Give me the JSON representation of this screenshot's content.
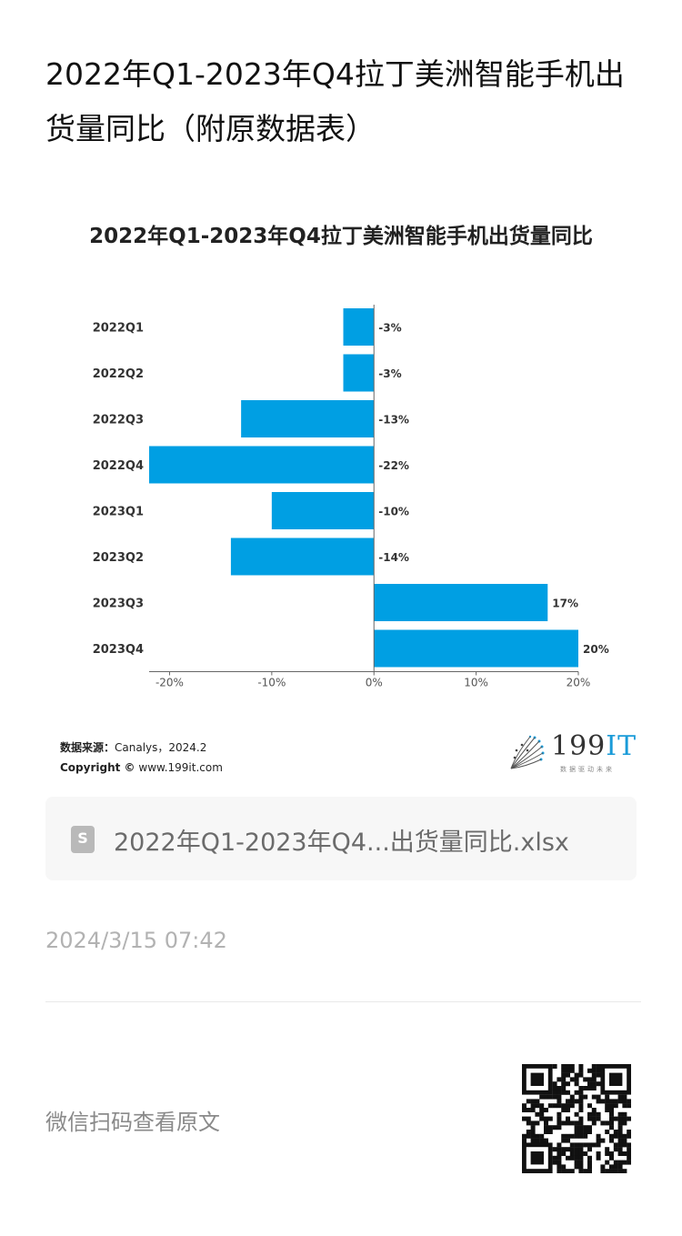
{
  "article": {
    "title": "2022年Q1-2023年Q4拉丁美洲智能手机出货量同比（附原数据表）"
  },
  "chart_data": {
    "type": "bar",
    "orientation": "horizontal",
    "title": "2022年Q1-2023年Q4拉丁美洲智能手机出货量同比",
    "categories": [
      "2022Q1",
      "2022Q2",
      "2022Q3",
      "2022Q4",
      "2023Q1",
      "2023Q2",
      "2023Q3",
      "2023Q4"
    ],
    "values": [
      -3,
      -3,
      -13,
      -22,
      -10,
      -14,
      17,
      20
    ],
    "value_labels": [
      "-3%",
      "-3%",
      "-13%",
      "-22%",
      "-10%",
      "-14%",
      "17%",
      "20%"
    ],
    "xlim": [
      -22,
      20
    ],
    "xticks": [
      -20,
      -10,
      0,
      10,
      20
    ],
    "xtick_labels": [
      "-20%",
      "-10%",
      "0%",
      "10%",
      "20%"
    ],
    "grid": false,
    "color": "#009fe3"
  },
  "source": {
    "label": "数据来源：",
    "value": "Canalys，2024.2",
    "copyright_label": "Copyright ©",
    "copyright_value": "www.199it.com"
  },
  "logo": {
    "text_num": "199",
    "text_it": "IT",
    "subtitle": "数据驱动未来"
  },
  "attachment": {
    "icon": "spreadsheet-file-icon",
    "icon_glyph": "S",
    "file_name": "2022年Q1-2023年Q4...出货量同比.xlsx"
  },
  "meta": {
    "timestamp": "2024/3/15 07:42",
    "qr_hint": "微信扫码查看原文"
  }
}
